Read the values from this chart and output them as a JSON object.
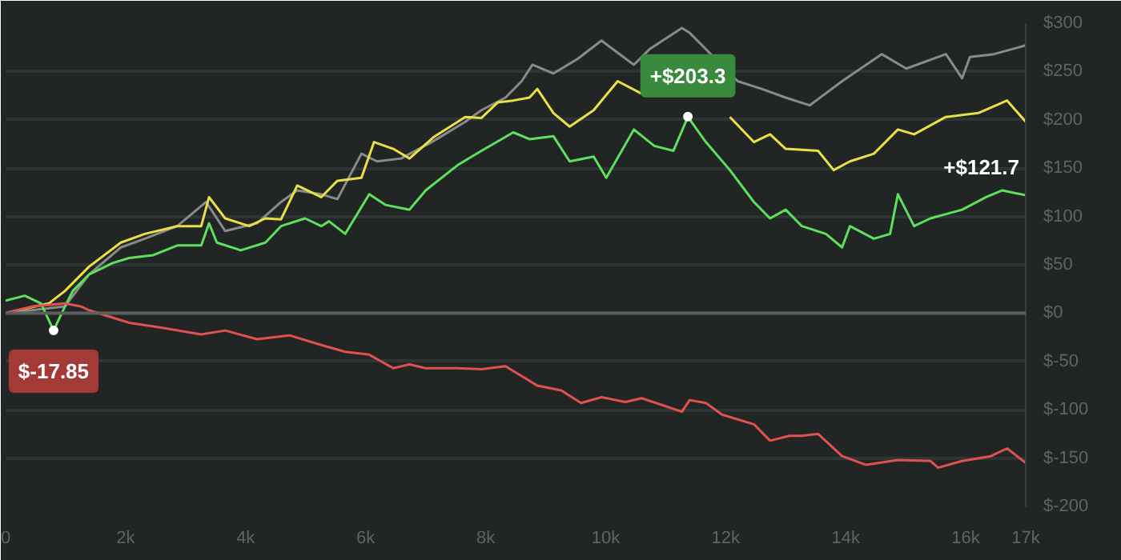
{
  "chart_data": {
    "type": "line",
    "xlim": [
      0,
      17000
    ],
    "ylim": [
      -200,
      300
    ],
    "xticks": [
      0,
      {
        "value": 2000,
        "label": "2k"
      },
      {
        "value": 4000,
        "label": "4k"
      },
      {
        "value": 6000,
        "label": "6k"
      },
      {
        "value": 8000,
        "label": "8k"
      },
      {
        "value": 10000,
        "label": "10k"
      },
      {
        "value": 12000,
        "label": "12k"
      },
      {
        "value": 14000,
        "label": "14k"
      },
      {
        "value": 16000,
        "label": "16k"
      },
      {
        "value": 17000,
        "label": "17k"
      }
    ],
    "yticks": [
      {
        "value": -200,
        "label": "$-200"
      },
      {
        "value": -150,
        "label": "$-150"
      },
      {
        "value": -100,
        "label": "$-100"
      },
      {
        "value": -50,
        "label": "$-50"
      },
      {
        "value": 0,
        "label": "$0"
      },
      {
        "value": 50,
        "label": "$50"
      },
      {
        "value": 100,
        "label": "$100"
      },
      {
        "value": 150,
        "label": "$150"
      },
      {
        "value": 200,
        "label": "$200"
      },
      {
        "value": 250,
        "label": "$250"
      },
      {
        "value": 300,
        "label": "$300"
      }
    ],
    "grid": "y",
    "marker": "none",
    "line_style": "solid",
    "ref_lines": [
      {
        "axis": "y",
        "value": 0,
        "color": "#5a5f5e"
      }
    ],
    "series": [
      {
        "color": "#8a8a8a",
        "x": [
          0,
          990,
          1390,
          1920,
          2320,
          2860,
          3340,
          3660,
          4190,
          4590,
          4860,
          5260,
          5530,
          5930,
          6190,
          6590,
          7130,
          7660,
          7930,
          8330,
          8600,
          8780,
          9130,
          9530,
          9930,
          10470,
          10730,
          11270,
          11400,
          11800,
          12200,
          12600,
          13000,
          13400,
          13940,
          14600,
          15010,
          15670,
          15940,
          16070,
          16470,
          17000
        ],
        "values": [
          0,
          7,
          40,
          68,
          77,
          90,
          115,
          85,
          93,
          115,
          127,
          123,
          118,
          165,
          157,
          160,
          178,
          198,
          210,
          223,
          240,
          257,
          248,
          263,
          282,
          257,
          273,
          295,
          290,
          265,
          240,
          232,
          223,
          215,
          240,
          268,
          253,
          268,
          243,
          265,
          268,
          277
        ]
      },
      {
        "color": "#e8e045",
        "x": [
          0,
          720,
          990,
          1390,
          1920,
          2320,
          2860,
          3260,
          3390,
          3660,
          4060,
          4330,
          4590,
          4860,
          5260,
          5530,
          5930,
          6140,
          6460,
          6730,
          7130,
          7660,
          7930,
          8200,
          8460,
          8730,
          8860,
          9130,
          9400,
          9800,
          10200,
          10600,
          10870,
          11400,
          11670,
          12070,
          12470,
          12740,
          13000,
          13540,
          13800,
          14070,
          14470,
          14870,
          15140,
          15670,
          16210,
          16690,
          17000
        ],
        "values": [
          0,
          10,
          23,
          48,
          73,
          82,
          90,
          90,
          120,
          98,
          90,
          98,
          97,
          132,
          120,
          137,
          140,
          177,
          170,
          160,
          182,
          203,
          202,
          218,
          220,
          223,
          232,
          207,
          193,
          210,
          240,
          227,
          null,
          null,
          null,
          203,
          177,
          185,
          170,
          168,
          148,
          157,
          165,
          190,
          185,
          203,
          207,
          220,
          198
        ]
      },
      {
        "color": "#5ee05e",
        "x": [
          0,
          320,
          590,
          800,
          990,
          1120,
          1390,
          1790,
          2060,
          2460,
          2860,
          3260,
          3390,
          3520,
          3920,
          4330,
          4590,
          4990,
          5260,
          5390,
          5660,
          6060,
          6330,
          6730,
          7000,
          7530,
          7930,
          8460,
          8730,
          9130,
          9400,
          9800,
          10010,
          10470,
          10810,
          11130,
          11370,
          11670,
          12070,
          12470,
          12740,
          13000,
          13270,
          13670,
          13940,
          14070,
          14470,
          14740,
          14870,
          15140,
          15410,
          15940,
          16340,
          16610,
          17000
        ],
        "values": [
          13,
          18,
          10,
          -18,
          7,
          23,
          40,
          52,
          57,
          60,
          70,
          70,
          93,
          73,
          65,
          73,
          90,
          98,
          90,
          95,
          82,
          123,
          112,
          107,
          127,
          153,
          168,
          187,
          180,
          183,
          157,
          162,
          140,
          190,
          173,
          168,
          203,
          177,
          148,
          115,
          98,
          107,
          90,
          82,
          68,
          90,
          77,
          82,
          123,
          90,
          98,
          107,
          120,
          127,
          122
        ]
      },
      {
        "color": "#e05252",
        "x": [
          0,
          450,
          990,
          1250,
          1390,
          2060,
          2590,
          3260,
          3660,
          4190,
          4730,
          5260,
          5660,
          6060,
          6460,
          6730,
          7000,
          7530,
          7930,
          8330,
          8860,
          9260,
          9590,
          9930,
          10330,
          10600,
          11270,
          11400,
          11670,
          11940,
          12470,
          12740,
          13060,
          13270,
          13540,
          13940,
          14340,
          14870,
          15410,
          15540,
          15940,
          16420,
          16690,
          17000
        ],
        "values": [
          0,
          7,
          10,
          7,
          3,
          -10,
          -15,
          -22,
          -18,
          -27,
          -23,
          -33,
          -40,
          -43,
          -57,
          -53,
          -57,
          -57,
          -58,
          -55,
          -75,
          -80,
          -93,
          -87,
          -92,
          -88,
          -102,
          -90,
          -93,
          -105,
          -115,
          -132,
          -127,
          -127,
          -125,
          -148,
          -157,
          -152,
          -153,
          -160,
          -153,
          -148,
          -140,
          -155
        ]
      }
    ],
    "annotations": [
      {
        "text": "+$203.3",
        "x": 11370,
        "y": 203.3
      },
      {
        "text": "$-17.85",
        "x": 800,
        "y": -17.85
      },
      {
        "text": "+$121.7",
        "x": 17000,
        "y": 121.7
      }
    ]
  }
}
